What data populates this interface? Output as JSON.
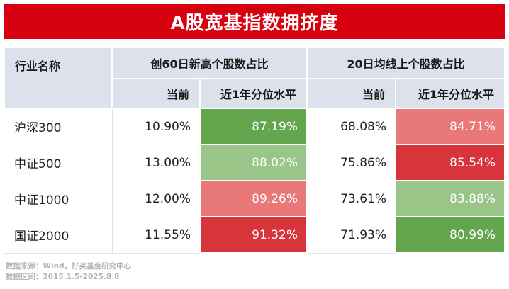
{
  "title": "A股宽基指数拥挤度",
  "table": {
    "name_header": "行业名称",
    "groups": [
      {
        "label": "创60日新高个股数占比",
        "current_label": "当前",
        "pct_label": "近1年分位水平"
      },
      {
        "label": "20日均线上个股数占比",
        "current_label": "当前",
        "pct_label": "近1年分位水平"
      }
    ],
    "rows": [
      {
        "name": "沪深300",
        "g1_current": "10.90%",
        "g1_pct": "87.19%",
        "g1_color": "#63a64d",
        "g2_current": "68.08%",
        "g2_pct": "84.71%",
        "g2_color": "#e97878"
      },
      {
        "name": "中证500",
        "g1_current": "13.00%",
        "g1_pct": "88.02%",
        "g1_color": "#99c588",
        "g2_current": "75.86%",
        "g2_pct": "85.54%",
        "g2_color": "#d7343b"
      },
      {
        "name": "中证1000",
        "g1_current": "12.00%",
        "g1_pct": "89.26%",
        "g1_color": "#e97878",
        "g2_current": "73.61%",
        "g2_pct": "83.88%",
        "g2_color": "#99c588"
      },
      {
        "name": "国证2000",
        "g1_current": "11.55%",
        "g1_pct": "91.32%",
        "g1_color": "#d7343b",
        "g2_current": "71.93%",
        "g2_pct": "80.99%",
        "g2_color": "#63a64d"
      }
    ]
  },
  "footer": {
    "source": "数据来源：Wind，好买基金研究中心",
    "range": "数据区间：2015.1.5-2025.8.8"
  }
}
